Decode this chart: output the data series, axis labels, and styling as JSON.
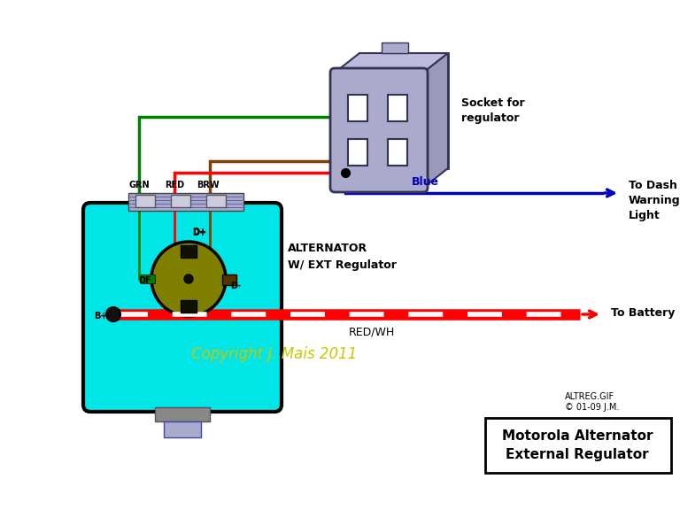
{
  "bg_color": "#ffffff",
  "alt_body_color": "#00e5e5",
  "alt_body_border": "#000000",
  "alt_connector_color": "#aaaacc",
  "socket_color": "#aaaacc",
  "socket_dark": "#8888aa",
  "rotor_outer_color": "#808000",
  "wire_green": "#008000",
  "wire_red": "#ff0000",
  "wire_brown": "#804000",
  "wire_blue": "#0000bb",
  "dot_color": "#000000",
  "text_copyright": "Copyright J. Mais 2011",
  "text_copyright_color": "#c8c800",
  "text_alt": "ALTERNATOR\nW/ EXT Regulator",
  "text_socket": "Socket for\nregulator",
  "text_blue_label": "Blue",
  "text_blue_dest": "To Dash\nWarning\nLight",
  "text_bat_label": "RED/WH",
  "text_bat_dest": "To Battery",
  "text_grn": "GRN",
  "text_red": "RED",
  "text_brw": "BRW",
  "text_dp": "D+",
  "text_df": "DF",
  "text_dm": "D-",
  "text_bp": "B+",
  "text_footer1": "ALTREG.GIF",
  "text_footer2": "© 01-09 J.M.",
  "text_title": "Motorola Alternator\nExternal Regulator",
  "figw": 7.68,
  "figh": 5.76,
  "dpi": 100
}
